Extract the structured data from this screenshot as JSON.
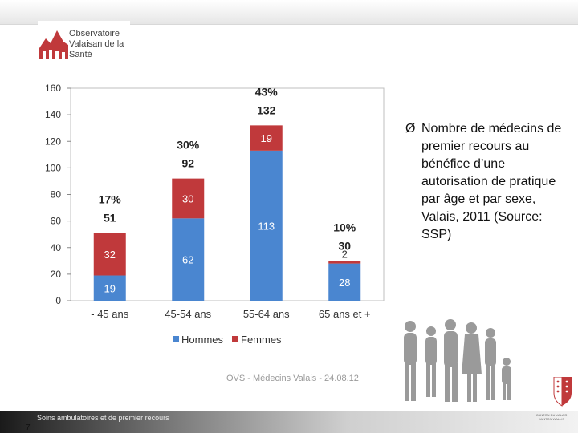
{
  "logo": {
    "line1": "Observatoire",
    "line2": "Valaisan de la",
    "line3": "Santé"
  },
  "bullet": {
    "arrow": "Ø",
    "text": "Nombre de médecins de premier recours au bénéfice d’une autorisation de pratique par âge et par sexe, Valais, 2011 (Source: SSP)"
  },
  "footer": {
    "caption": "OVS - Médecins Valais - 24.08.12",
    "label": "Soins ambulatoires et de premier recours",
    "page": "7",
    "canton_line1": "CANTON DU VALAIS",
    "canton_line2": "KANTON WALLIS"
  },
  "colors": {
    "hommes": "#4a86d0",
    "femmes": "#c0393b",
    "grid": "#d9d9d9"
  },
  "chart_data": {
    "type": "bar",
    "stacked": true,
    "categories": [
      "- 45 ans",
      "45-54 ans",
      "55-64 ans",
      "65 ans et +"
    ],
    "series": [
      {
        "name": "Hommes",
        "values": [
          19,
          62,
          113,
          28
        ]
      },
      {
        "name": "Femmes",
        "values": [
          32,
          30,
          19,
          2
        ]
      }
    ],
    "totals": [
      "51",
      "92",
      "132",
      "30"
    ],
    "percentages": [
      "17%",
      "30%",
      "43%",
      "10%"
    ],
    "ylim": [
      0,
      160
    ],
    "yticks": [
      0,
      20,
      40,
      60,
      80,
      100,
      120,
      140,
      160
    ],
    "grid": false,
    "legend": "bottom"
  }
}
